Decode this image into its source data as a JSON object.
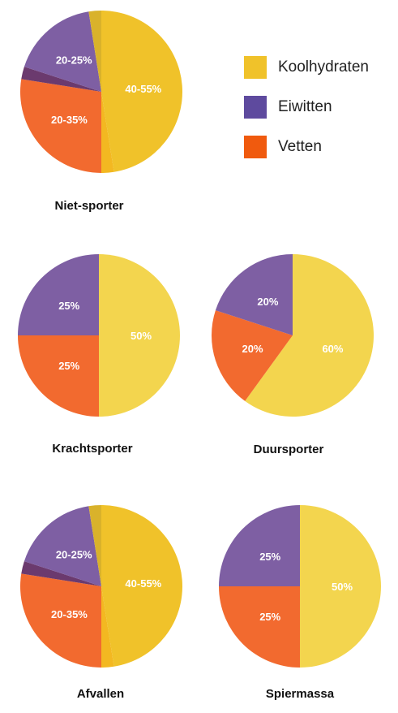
{
  "legend": {
    "items": [
      {
        "label": "Koolhydraten",
        "color": "#F0C22A"
      },
      {
        "label": "Eiwitten",
        "color": "#5E4A9E"
      },
      {
        "label": "Vetten",
        "color": "#F05A0E"
      }
    ]
  },
  "chart_data": [
    {
      "type": "pie",
      "title": "Niet-sporter",
      "slices": [
        {
          "category": "Koolhydraten",
          "label": "40-55%",
          "value": 47.5,
          "color": "#F0C22A"
        },
        {
          "category": "Koolhydraten (marge)",
          "label": "",
          "value": 2.5,
          "color": "#F3B821"
        },
        {
          "category": "Vetten",
          "label": "20-35%",
          "value": 27.5,
          "color": "#F26A2F"
        },
        {
          "category": "Eiwitten (marge)",
          "label": "",
          "value": 2.5,
          "color": "#6B3A6E"
        },
        {
          "category": "Eiwitten",
          "label": "20-25%",
          "value": 17.5,
          "color": "#7E5FA3"
        },
        {
          "category": "Koolhydraten (marge)",
          "label": "",
          "value": 2.5,
          "color": "#D9B22B"
        }
      ]
    },
    {
      "type": "pie",
      "title": "Krachtsporter",
      "slices": [
        {
          "category": "Koolhydraten",
          "label": "50%",
          "value": 50,
          "color": "#F3D54E"
        },
        {
          "category": "Vetten",
          "label": "25%",
          "value": 25,
          "color": "#F26A2F"
        },
        {
          "category": "Eiwitten",
          "label": "25%",
          "value": 25,
          "color": "#7E5FA3"
        }
      ]
    },
    {
      "type": "pie",
      "title": "Duursporter",
      "slices": [
        {
          "category": "Koolhydraten",
          "label": "60%",
          "value": 60,
          "color": "#F3D54E"
        },
        {
          "category": "Vetten",
          "label": "20%",
          "value": 20,
          "color": "#F26A2F"
        },
        {
          "category": "Eiwitten",
          "label": "20%",
          "value": 20,
          "color": "#7E5FA3"
        }
      ]
    },
    {
      "type": "pie",
      "title": "Afvallen",
      "slices": [
        {
          "category": "Koolhydraten",
          "label": "40-55%",
          "value": 47.5,
          "color": "#F0C22A"
        },
        {
          "category": "Koolhydraten (marge)",
          "label": "",
          "value": 2.5,
          "color": "#F3B821"
        },
        {
          "category": "Vetten",
          "label": "20-35%",
          "value": 27.5,
          "color": "#F26A2F"
        },
        {
          "category": "Eiwitten (marge)",
          "label": "",
          "value": 2.5,
          "color": "#6B3A6E"
        },
        {
          "category": "Eiwitten",
          "label": "20-25%",
          "value": 17.5,
          "color": "#7E5FA3"
        },
        {
          "category": "Koolhydraten (marge)",
          "label": "",
          "value": 2.5,
          "color": "#D9B22B"
        }
      ]
    },
    {
      "type": "pie",
      "title": "Spiermassa",
      "slices": [
        {
          "category": "Koolhydraten",
          "label": "50%",
          "value": 50,
          "color": "#F3D54E"
        },
        {
          "category": "Vetten",
          "label": "25%",
          "value": 25,
          "color": "#F26A2F"
        },
        {
          "category": "Eiwitten",
          "label": "25%",
          "value": 25,
          "color": "#7E5FA3"
        }
      ]
    }
  ]
}
